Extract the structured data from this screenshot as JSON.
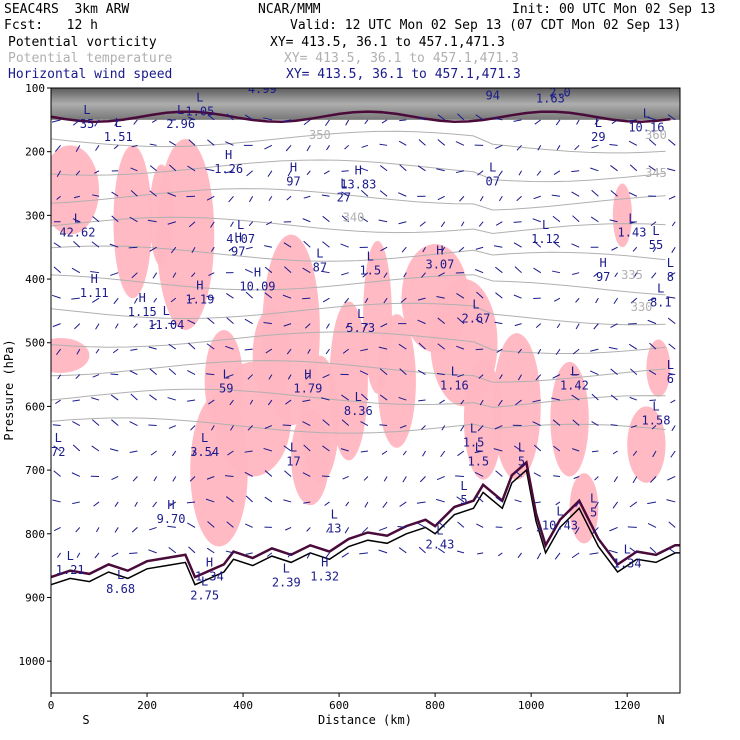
{
  "header": {
    "project": "SEAC4RS  3km ARW",
    "org": "NCAR/MMM",
    "init": "Init: 00 UTC Mon 02 Sep 13",
    "fcst": "Fcst:   12 h",
    "valid": "Valid: 12 UTC Mon 02 Sep 13 (07 CDT Mon 02 Sep 13)"
  },
  "fields": [
    {
      "name": "Potential vorticity",
      "xy": "XY= 413.5, 36.1 to 457.1,471.3",
      "color": "#000000"
    },
    {
      "name": "Potential temperature",
      "xy": "XY= 413.5, 36.1 to 457.1,471.3",
      "color": "#b0b0b0"
    },
    {
      "name": "Horizontal wind speed",
      "xy": "XY= 413.5, 36.1 to 457.1,471.3",
      "color": "#1a1a8c"
    }
  ],
  "chart_data": {
    "type": "cross-section",
    "xlabel": "Distance (km)",
    "ylabel": "Pressure (hPa)",
    "xlim": [
      0,
      1310
    ],
    "ylim": [
      1050,
      100
    ],
    "x_ticks": [
      "0",
      "200",
      "400",
      "600",
      "800",
      "1000",
      "1200"
    ],
    "y_ticks": [
      "100",
      "200",
      "300",
      "400",
      "500",
      "600",
      "700",
      "800",
      "900",
      "1000"
    ],
    "end_labels": {
      "left": "S",
      "right": "N"
    },
    "theta_contours": [
      {
        "label": "350",
        "x": 560,
        "p": 180
      },
      {
        "label": "345",
        "x": 1260,
        "p": 240
      },
      {
        "label": "340",
        "x": 630,
        "p": 310
      },
      {
        "label": "335",
        "x": 1210,
        "p": 400
      },
      {
        "label": "330",
        "x": 1230,
        "p": 450
      },
      {
        "label": "360",
        "x": 1260,
        "p": 180
      }
    ],
    "extrema_labels": [
      {
        "type": "H",
        "value": "4.99",
        "x": 440,
        "p": 105
      },
      {
        "type": "L",
        "value": "1.05",
        "x": 310,
        "p": 140
      },
      {
        "type": "L",
        "value": "2.96",
        "x": 270,
        "p": 160
      },
      {
        "type": "L",
        "value": "1.51",
        "x": 140,
        "p": 180
      },
      {
        "type": "H",
        "value": "1.26",
        "x": 370,
        "p": 230
      },
      {
        "type": "H",
        "value": "97",
        "x": 505,
        "p": 250
      },
      {
        "type": "H",
        "value": "13.83",
        "x": 640,
        "p": 255
      },
      {
        "type": "L",
        "value": "27",
        "x": 610,
        "p": 275
      },
      {
        "type": "L",
        "value": "07",
        "x": 920,
        "p": 250
      },
      {
        "type": "L",
        "value": "42.62",
        "x": 55,
        "p": 330
      },
      {
        "type": "L",
        "value": "4.07",
        "x": 395,
        "p": 340
      },
      {
        "type": "H",
        "value": "97",
        "x": 390,
        "p": 360
      },
      {
        "type": "L",
        "value": "1.12",
        "x": 1030,
        "p": 340
      },
      {
        "type": "L",
        "value": "1.43",
        "x": 1210,
        "p": 330
      },
      {
        "type": "L",
        "value": "55",
        "x": 1260,
        "p": 350
      },
      {
        "type": "L",
        "value": "87",
        "x": 560,
        "p": 385
      },
      {
        "type": "L",
        "value": "1.5",
        "x": 665,
        "p": 390
      },
      {
        "type": "H",
        "value": "3.07",
        "x": 810,
        "p": 380
      },
      {
        "type": "H",
        "value": "97",
        "x": 1150,
        "p": 400
      },
      {
        "type": "H",
        "value": "10.09",
        "x": 430,
        "p": 415
      },
      {
        "type": "H",
        "value": "1.11",
        "x": 90,
        "p": 425
      },
      {
        "type": "H",
        "value": "1.19",
        "x": 310,
        "p": 435
      },
      {
        "type": "H",
        "value": "1.15",
        "x": 190,
        "p": 455
      },
      {
        "type": "L",
        "value": "11.04",
        "x": 240,
        "p": 475
      },
      {
        "type": "L",
        "value": "5.73",
        "x": 645,
        "p": 480
      },
      {
        "type": "L",
        "value": "2.67",
        "x": 885,
        "p": 465
      },
      {
        "type": "L",
        "value": "8.1",
        "x": 1270,
        "p": 440
      },
      {
        "type": "L",
        "value": "1.16",
        "x": 840,
        "p": 570
      },
      {
        "type": "L",
        "value": "1.42",
        "x": 1090,
        "p": 570
      },
      {
        "type": "L",
        "value": "59",
        "x": 365,
        "p": 575
      },
      {
        "type": "H",
        "value": "1.79",
        "x": 535,
        "p": 575
      },
      {
        "type": "L",
        "value": "6",
        "x": 1290,
        "p": 560
      },
      {
        "type": "L",
        "value": "8.36",
        "x": 640,
        "p": 610
      },
      {
        "type": "L",
        "value": "1.58",
        "x": 1260,
        "p": 625
      },
      {
        "type": "L",
        "value": "1.5",
        "x": 880,
        "p": 660
      },
      {
        "type": "L",
        "value": "3.54",
        "x": 320,
        "p": 675
      },
      {
        "type": "L",
        "value": "72",
        "x": 15,
        "p": 675
      },
      {
        "type": "L",
        "value": "17",
        "x": 505,
        "p": 690
      },
      {
        "type": "L",
        "value": "1.5",
        "x": 890,
        "p": 690
      },
      {
        "type": "L",
        "value": "5",
        "x": 980,
        "p": 690
      },
      {
        "type": "L",
        "value": "5",
        "x": 860,
        "p": 750
      },
      {
        "type": "H",
        "value": "9.70",
        "x": 250,
        "p": 780
      },
      {
        "type": "L",
        "value": "5",
        "x": 1130,
        "p": 770
      },
      {
        "type": "L",
        "value": "13",
        "x": 590,
        "p": 795
      },
      {
        "type": "L",
        "value": "10.43",
        "x": 1060,
        "p": 790
      },
      {
        "type": "L",
        "value": "2.43",
        "x": 810,
        "p": 820
      },
      {
        "type": "H",
        "value": "1.34",
        "x": 330,
        "p": 870
      },
      {
        "type": "H",
        "value": "1.32",
        "x": 570,
        "p": 870
      },
      {
        "type": "L",
        "value": "2.39",
        "x": 490,
        "p": 880
      },
      {
        "type": "L",
        "value": "1.34",
        "x": 1200,
        "p": 850
      },
      {
        "type": "L",
        "value": "8.68",
        "x": 145,
        "p": 890
      },
      {
        "type": "L",
        "value": "2.75",
        "x": 320,
        "p": 900
      },
      {
        "type": "L",
        "value": "1.21",
        "x": 40,
        "p": 860
      },
      {
        "type": "L",
        "value": "2.0",
        "x": 1060,
        "p": 110
      },
      {
        "type": "L",
        "value": "1.63",
        "x": 1040,
        "p": 120
      },
      {
        "type": "L",
        "value": "29",
        "x": 1140,
        "p": 180
      },
      {
        "type": "L",
        "value": "10.16",
        "x": 1240,
        "p": 165
      },
      {
        "type": "L",
        "value": "35",
        "x": 75,
        "p": 160
      },
      {
        "type": "L",
        "value": "94",
        "x": 920,
        "p": 115
      },
      {
        "type": "L",
        "value": "8",
        "x": 1290,
        "p": 400
      }
    ],
    "colors": {
      "pv": "#4a0a3a",
      "pv_fill": "#ffb6c1",
      "theta": "#b0b0b0",
      "wind": "#1a1a8c",
      "terrain": "#000000"
    }
  }
}
